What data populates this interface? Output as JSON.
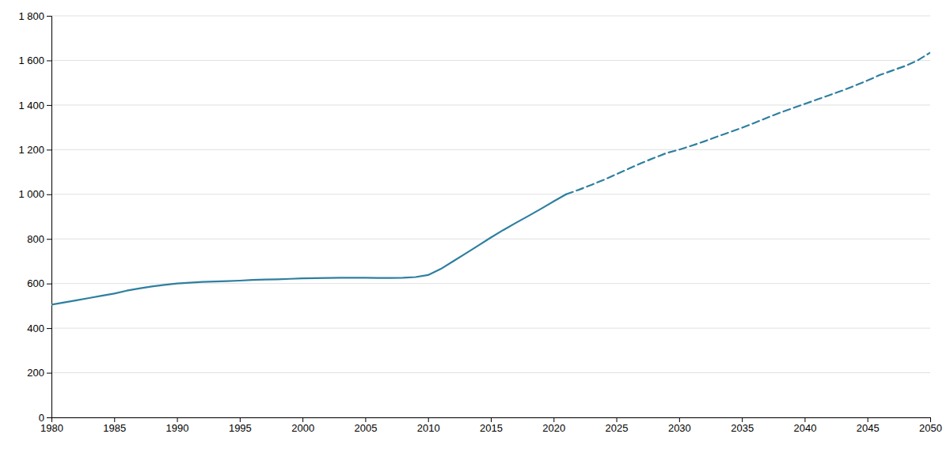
{
  "chart_data": {
    "type": "line",
    "series": [
      {
        "color": "#2e7fa0",
        "line_style": "solid",
        "x": [
          1980,
          1981,
          1982,
          1983,
          1984,
          1985,
          1986,
          1987,
          1988,
          1989,
          1990,
          1991,
          1992,
          1993,
          1994,
          1995,
          1996,
          1997,
          1998,
          1999,
          2000,
          2001,
          2002,
          2003,
          2004,
          2005,
          2006,
          2007,
          2008,
          2009,
          2010,
          2011,
          2012,
          2013,
          2014,
          2015,
          2016,
          2017,
          2018,
          2019,
          2020,
          2021
        ],
        "values": [
          505,
          515,
          525,
          535,
          545,
          555,
          568,
          578,
          587,
          594,
          600,
          604,
          607,
          609,
          611,
          613,
          616,
          618,
          619,
          621,
          623,
          624,
          625,
          626,
          626,
          626,
          625,
          625,
          626,
          629,
          638,
          665,
          700,
          735,
          770,
          806,
          840,
          872,
          903,
          935,
          968,
          1000
        ]
      },
      {
        "color": "#2e7fa0",
        "line_style": "dashed",
        "x": [
          2021,
          2022,
          2023,
          2024,
          2025,
          2026,
          2027,
          2028,
          2029,
          2030,
          2031,
          2032,
          2033,
          2034,
          2035,
          2036,
          2037,
          2038,
          2039,
          2040,
          2041,
          2042,
          2043,
          2044,
          2045,
          2046,
          2047,
          2048,
          2049,
          2050
        ],
        "values": [
          1000,
          1020,
          1042,
          1065,
          1090,
          1115,
          1140,
          1163,
          1185,
          1200,
          1218,
          1237,
          1258,
          1278,
          1298,
          1320,
          1343,
          1365,
          1385,
          1405,
          1425,
          1445,
          1465,
          1487,
          1510,
          1535,
          1555,
          1575,
          1600,
          1635
        ]
      }
    ],
    "xlim": [
      1980,
      2050
    ],
    "xticks": [
      1980,
      1985,
      1990,
      1995,
      2000,
      2005,
      2010,
      2015,
      2020,
      2025,
      2030,
      2035,
      2040,
      2045,
      2050
    ],
    "ylim": [
      0,
      1800
    ],
    "yticks": [
      0,
      200,
      400,
      600,
      800,
      {
        "value": 1000,
        "label": "1 000"
      },
      {
        "value": 1200,
        "label": "1 200"
      },
      {
        "value": 1400,
        "label": "1 400"
      },
      {
        "value": 1600,
        "label": "1 600"
      },
      {
        "value": 1800,
        "label": "1 800"
      }
    ],
    "grid": true
  }
}
